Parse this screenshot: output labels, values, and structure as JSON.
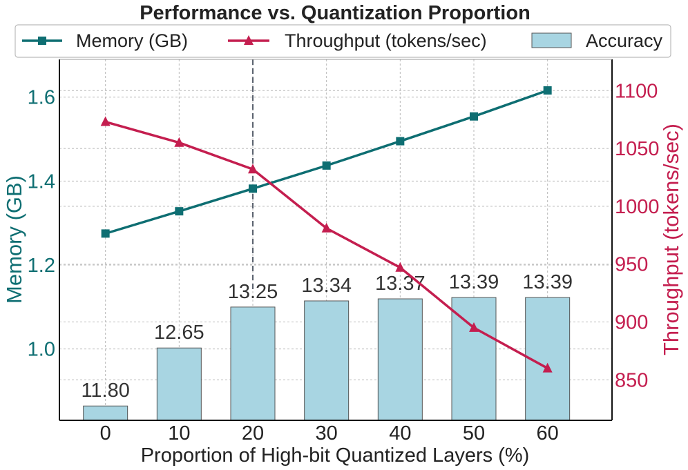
{
  "chart_data": {
    "type": "bar+line",
    "title": "Performance vs. Quantization Proportion",
    "xlabel": "Proportion of High-bit Quantized Layers (%)",
    "categories": [
      "0",
      "10",
      "20",
      "30",
      "40",
      "50",
      "60"
    ],
    "x": [
      0,
      10,
      20,
      30,
      40,
      50,
      60
    ],
    "left_axis": {
      "label": "Memory (GB)",
      "ylim": [
        0.83,
        1.69
      ],
      "ticks": [
        1.0,
        1.2,
        1.4,
        1.6
      ],
      "tick_labels": [
        "1.0",
        "1.2",
        "1.4",
        "1.6"
      ],
      "color": "#0e6e72"
    },
    "right_axis": {
      "label": "Throughput (tokens/sec)",
      "ylim": [
        815,
        1127
      ],
      "ticks": [
        850,
        900,
        950,
        1000,
        1050,
        1100
      ],
      "tick_labels": [
        "850",
        "900",
        "950",
        "1000",
        "1050",
        "1100"
      ],
      "color": "#c41e4f"
    },
    "series": [
      {
        "name": "Memory (GB)",
        "kind": "line",
        "marker": "square",
        "axis": "left",
        "color": "#0e6e72",
        "values": [
          1.275,
          1.328,
          1.382,
          1.437,
          1.495,
          1.554,
          1.616
        ]
      },
      {
        "name": "Throughput (tokens/sec)",
        "kind": "line",
        "marker": "triangle",
        "axis": "right",
        "color": "#c41e4f",
        "values": [
          1073,
          1055,
          1032,
          981,
          947,
          895,
          860
        ]
      },
      {
        "name": "Accuracy",
        "kind": "bar",
        "color": "#a8d5e2",
        "values": [
          11.8,
          12.65,
          13.25,
          13.34,
          13.37,
          13.39,
          13.39
        ],
        "labels": [
          "11.80",
          "12.65",
          "13.25",
          "13.34",
          "13.37",
          "13.39",
          "13.39"
        ]
      }
    ],
    "highlight_x": 20,
    "legend": {
      "position": "top",
      "entries": [
        "Memory (GB)",
        "Throughput (tokens/sec)",
        "Accuracy"
      ]
    },
    "grid": true
  }
}
